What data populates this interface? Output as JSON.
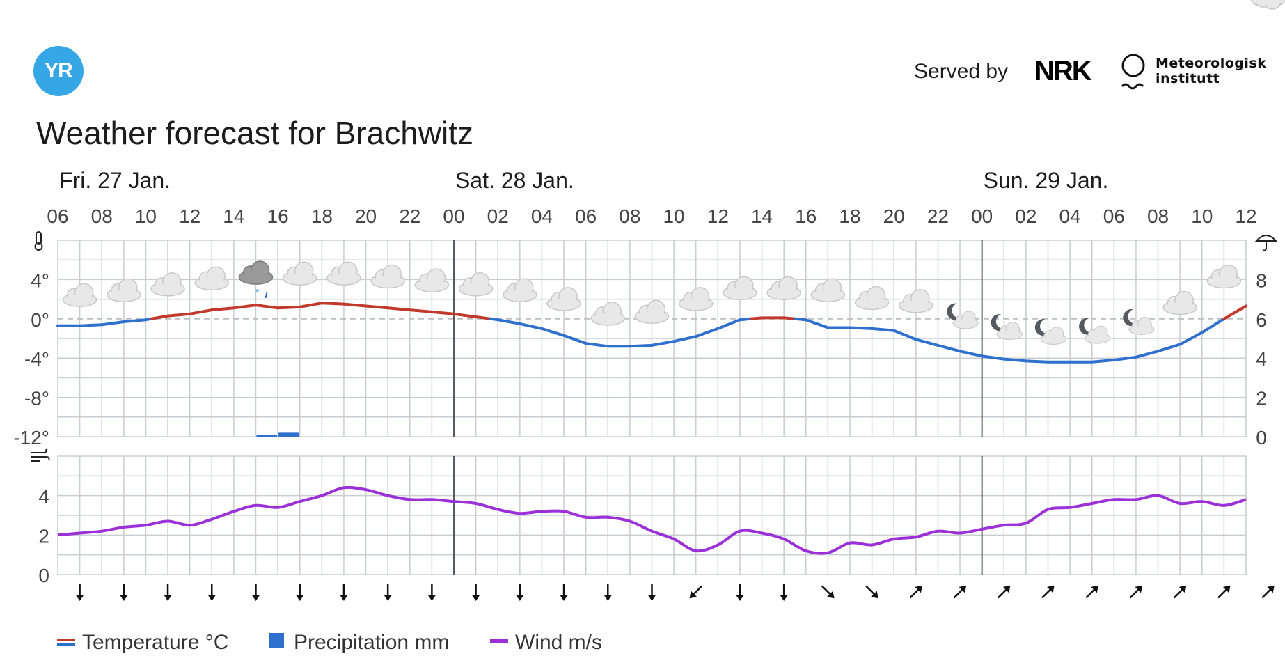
{
  "logo": {
    "text": "YR"
  },
  "served_by": {
    "label": "Served by",
    "nrk": "NRK",
    "met_line1": "Meteorologisk",
    "met_line2": "institutt"
  },
  "title": "Weather forecast for Brachwitz",
  "colors": {
    "temp_warm": "#c0392b",
    "temp_cold": "#2f6fce",
    "precip": "#2f6fce",
    "wind": "#9b30d9",
    "grid": "#c8cdd2",
    "axis_text": "#444444",
    "logo": "#36a7e6"
  },
  "chart_data": [
    {
      "type": "line",
      "day_labels": [
        {
          "hour_index": 0,
          "label": "Fri. 27 Jan."
        },
        {
          "hour_index": 18,
          "label": "Sat. 28 Jan."
        },
        {
          "hour_index": 42,
          "label": "Sun. 29 Jan."
        }
      ],
      "x_tick_labels": [
        "06",
        "08",
        "10",
        "12",
        "14",
        "16",
        "18",
        "20",
        "22",
        "00",
        "02",
        "04",
        "06",
        "08",
        "10",
        "12",
        "14",
        "16",
        "18",
        "20",
        "22",
        "00",
        "02",
        "04",
        "06",
        "08",
        "10",
        "12"
      ],
      "yticks_left": [
        "4°",
        "0°",
        "-4°",
        "-8°",
        "-12°"
      ],
      "yticks_right": [
        "8",
        "6",
        "4",
        "2",
        "0"
      ],
      "ylim_temp": [
        -12,
        8
      ],
      "ylim_precip": [
        0,
        10
      ],
      "series": [
        {
          "name": "Temperature °C",
          "values": [
            -0.7,
            -0.7,
            -0.6,
            -0.3,
            -0.1,
            0.3,
            0.5,
            0.9,
            1.1,
            1.4,
            1.1,
            1.2,
            1.6,
            1.5,
            1.3,
            1.1,
            0.9,
            0.7,
            0.5,
            0.2,
            -0.1,
            -0.5,
            -1.0,
            -1.7,
            -2.5,
            -2.8,
            -2.8,
            -2.7,
            -2.3,
            -1.8,
            -1.0,
            -0.1,
            0.1,
            0.1,
            -0.1,
            -0.9,
            -0.9,
            -1.0,
            -1.2,
            -2.1,
            -2.7,
            -3.3,
            -3.8,
            -4.1,
            -4.3,
            -4.4,
            -4.4,
            -4.4,
            -4.2,
            -3.9,
            -3.3,
            -2.6,
            -1.4,
            0.0,
            1.3
          ]
        },
        {
          "name": "Precipitation mm",
          "values": [
            0,
            0,
            0,
            0,
            0,
            0,
            0,
            0,
            0,
            0.1,
            0.2,
            0,
            0,
            0,
            0,
            0,
            0,
            0,
            0,
            0,
            0,
            0,
            0,
            0,
            0,
            0,
            0,
            0,
            0,
            0,
            0,
            0,
            0,
            0,
            0,
            0,
            0,
            0,
            0,
            0,
            0,
            0,
            0,
            0,
            0,
            0,
            0,
            0,
            0,
            0,
            0,
            0,
            0,
            0,
            0
          ]
        }
      ],
      "weather_icons": [
        "cloudy",
        "cloudy",
        "cloudy",
        "cloudy",
        "sleet",
        "cloudy",
        "cloudy",
        "cloudy",
        "cloudy",
        "cloudy",
        "cloudy",
        "cloudy",
        "cloudy",
        "cloudy",
        "cloudy",
        "cloudy",
        "cloudy",
        "cloudy",
        "cloudy",
        "cloudy",
        "partly-cloudy-night",
        "partly-cloudy-night",
        "partly-cloudy-night",
        "partly-cloudy-night",
        "partly-cloudy-night",
        "cloudy",
        "cloudy",
        "cloudy"
      ],
      "zero_line": "dashed",
      "grid": true
    },
    {
      "type": "line",
      "yticks_left": [
        "4",
        "2",
        "0"
      ],
      "ylim": [
        0,
        6
      ],
      "series": [
        {
          "name": "Wind m/s",
          "values": [
            2.0,
            2.1,
            2.2,
            2.4,
            2.5,
            2.7,
            2.5,
            2.8,
            3.2,
            3.5,
            3.4,
            3.7,
            4.0,
            4.4,
            4.3,
            4.0,
            3.8,
            3.8,
            3.7,
            3.6,
            3.3,
            3.1,
            3.2,
            3.2,
            2.9,
            2.9,
            2.7,
            2.2,
            1.8,
            1.2,
            1.5,
            2.2,
            2.1,
            1.8,
            1.2,
            1.1,
            1.6,
            1.5,
            1.8,
            1.9,
            2.2,
            2.1,
            2.3,
            2.5,
            2.6,
            3.3,
            3.4,
            3.6,
            3.8,
            3.8,
            4.0,
            3.6,
            3.7,
            3.5,
            3.8
          ]
        }
      ],
      "wind_arrows_deg": [
        180,
        180,
        180,
        180,
        180,
        180,
        180,
        180,
        180,
        180,
        180,
        180,
        180,
        180,
        225,
        180,
        180,
        135,
        135,
        45,
        45,
        45,
        45,
        45,
        45,
        45,
        45,
        45
      ],
      "grid": true
    }
  ],
  "legend": [
    {
      "label": "Temperature °C",
      "swatch": "temp"
    },
    {
      "label": "Precipitation mm",
      "swatch": "precip"
    },
    {
      "label": "Wind m/s",
      "swatch": "wind"
    }
  ]
}
